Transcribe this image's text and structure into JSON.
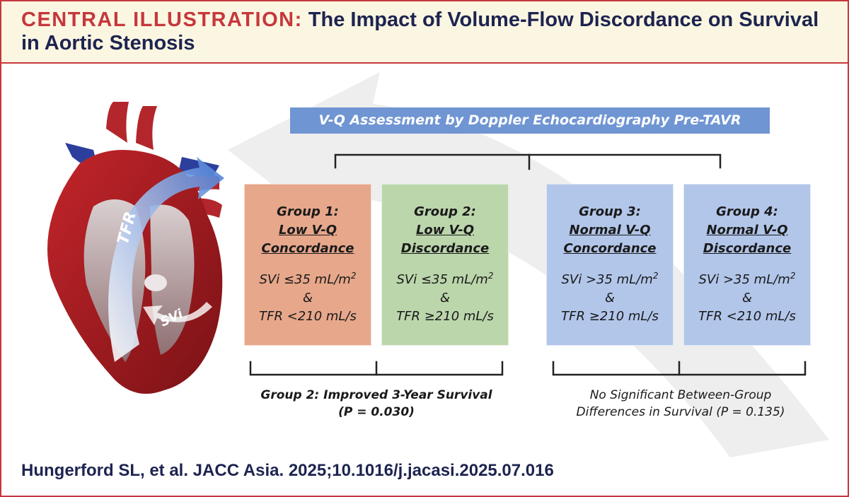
{
  "title": {
    "lead": "CENTRAL ILLUSTRATION:",
    "main": "The Impact of Volume-Flow Discordance on Survival in Aortic Stenosis"
  },
  "heart": {
    "labels": {
      "tfr": "TFR",
      "svi": "SVi"
    }
  },
  "assessment": "V-Q Assessment by Doppler Echocardiography Pre-TAVR",
  "groups": [
    {
      "name": "Group 1:",
      "type_line1": "Low V-Q",
      "type_line2": "Concordance",
      "svi": "SVi ≤35 mL/m",
      "svi_sup": "2",
      "amp": "&",
      "tfr": "TFR <210 mL/s",
      "color": "#e7a78b"
    },
    {
      "name": "Group 2:",
      "type_line1": "Low V-Q",
      "type_line2": "Discordance",
      "svi": "SVi ≤35 mL/m",
      "svi_sup": "2",
      "amp": "&",
      "tfr": "TFR ≥210 mL/s",
      "color": "#bcd6ac"
    },
    {
      "name": "Group 3:",
      "type_line1": "Normal V-Q",
      "type_line2": "Concordance",
      "svi": "SVi >35 mL/m",
      "svi_sup": "2",
      "amp": "&",
      "tfr": "TFR ≥210 mL/s",
      "color": "#b2c6ea"
    },
    {
      "name": "Group 4:",
      "type_line1": "Normal V-Q",
      "type_line2": "Discordance",
      "svi": "SVi >35 mL/m",
      "svi_sup": "2",
      "amp": "&",
      "tfr": "TFR <210 mL/s",
      "color": "#b2c6ea"
    }
  ],
  "conclusions": {
    "left": {
      "line1": "Group 2: Improved 3-Year Survival",
      "line2": "(P = 0.030)"
    },
    "right": {
      "line1": "No Significant Between-Group",
      "line2": "Differences in Survival (P = 0.135)"
    }
  },
  "citation": "Hungerford SL, et al. JACC Asia. 2025;10.1016/j.jacasi.2025.07.016",
  "colors": {
    "accent": "#c6373c",
    "navy": "#1d2450",
    "assessBar": "#6f95d3"
  }
}
